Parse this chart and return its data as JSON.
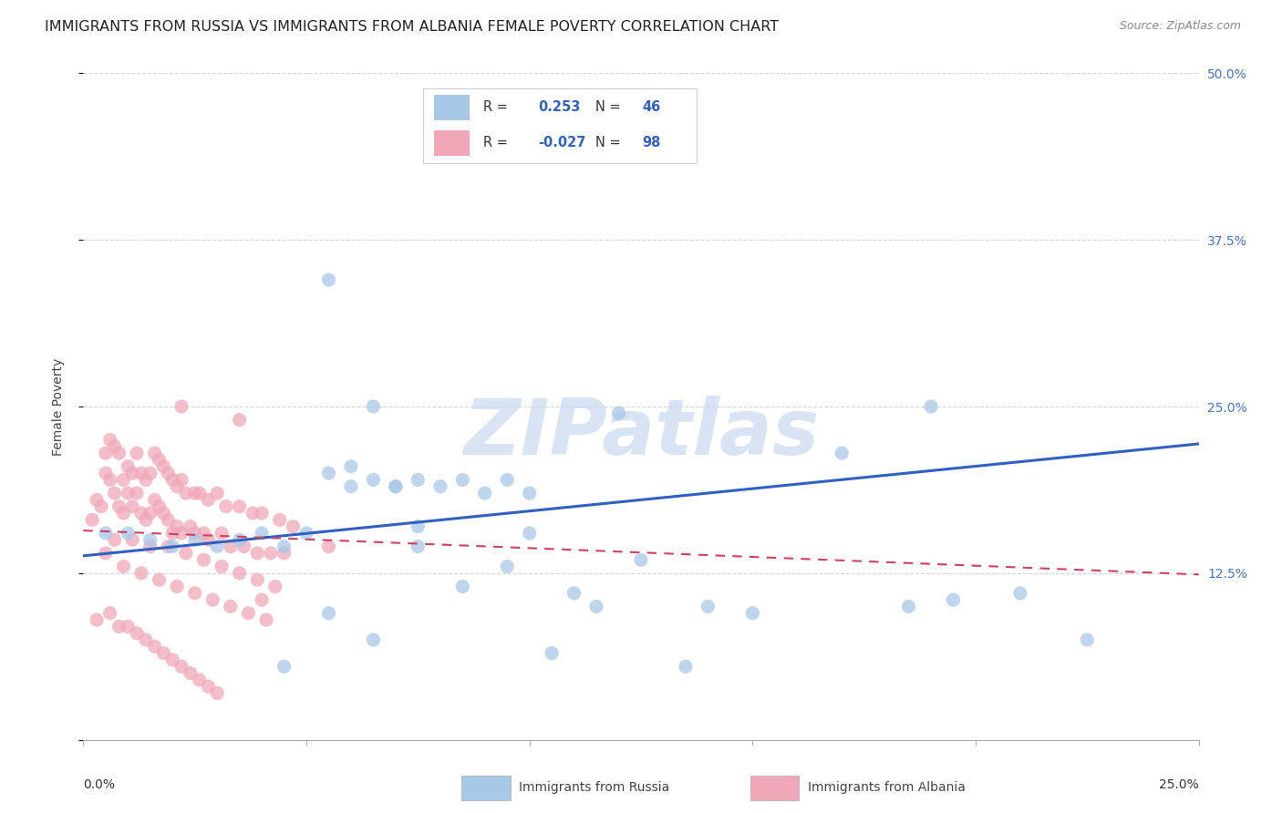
{
  "title": "IMMIGRANTS FROM RUSSIA VS IMMIGRANTS FROM ALBANIA FEMALE POVERTY CORRELATION CHART",
  "source": "Source: ZipAtlas.com",
  "ylabel": "Female Poverty",
  "yticks": [
    0.0,
    0.125,
    0.25,
    0.375,
    0.5
  ],
  "ytick_labels": [
    "",
    "12.5%",
    "25.0%",
    "37.5%",
    "50.0%"
  ],
  "xlim": [
    0.0,
    0.25
  ],
  "ylim": [
    0.0,
    0.5
  ],
  "russia_color": "#a8c8e8",
  "albania_color": "#f0a8b8",
  "russia_line_color": "#3060c0",
  "albania_line_color": "#d04060",
  "russia_R": 0.253,
  "russia_N": 46,
  "albania_R": -0.027,
  "albania_N": 98,
  "russia_scatter_x": [
    0.005,
    0.01,
    0.015,
    0.02,
    0.025,
    0.03,
    0.035,
    0.04,
    0.045,
    0.05,
    0.055,
    0.06,
    0.065,
    0.07,
    0.075,
    0.08,
    0.085,
    0.09,
    0.095,
    0.1,
    0.055,
    0.065,
    0.06,
    0.07,
    0.075,
    0.12,
    0.17,
    0.1,
    0.11,
    0.115,
    0.21,
    0.195,
    0.14,
    0.085,
    0.055,
    0.065,
    0.105,
    0.125,
    0.15,
    0.045,
    0.075,
    0.095,
    0.225,
    0.135,
    0.185,
    0.19
  ],
  "russia_scatter_y": [
    0.155,
    0.155,
    0.15,
    0.145,
    0.15,
    0.145,
    0.15,
    0.155,
    0.145,
    0.155,
    0.2,
    0.205,
    0.195,
    0.19,
    0.195,
    0.19,
    0.195,
    0.185,
    0.195,
    0.185,
    0.345,
    0.25,
    0.19,
    0.19,
    0.16,
    0.245,
    0.215,
    0.155,
    0.11,
    0.1,
    0.11,
    0.105,
    0.1,
    0.115,
    0.095,
    0.075,
    0.065,
    0.135,
    0.095,
    0.055,
    0.145,
    0.13,
    0.075,
    0.055,
    0.1,
    0.25
  ],
  "albania_scatter_x": [
    0.002,
    0.003,
    0.004,
    0.005,
    0.005,
    0.006,
    0.006,
    0.007,
    0.007,
    0.008,
    0.008,
    0.009,
    0.009,
    0.01,
    0.01,
    0.011,
    0.011,
    0.012,
    0.012,
    0.013,
    0.013,
    0.014,
    0.014,
    0.015,
    0.015,
    0.016,
    0.016,
    0.017,
    0.017,
    0.018,
    0.018,
    0.019,
    0.019,
    0.02,
    0.02,
    0.021,
    0.021,
    0.022,
    0.022,
    0.023,
    0.024,
    0.025,
    0.025,
    0.026,
    0.027,
    0.028,
    0.028,
    0.03,
    0.031,
    0.032,
    0.033,
    0.035,
    0.036,
    0.038,
    0.039,
    0.04,
    0.042,
    0.044,
    0.045,
    0.047,
    0.005,
    0.007,
    0.009,
    0.011,
    0.013,
    0.015,
    0.017,
    0.019,
    0.021,
    0.023,
    0.025,
    0.027,
    0.029,
    0.031,
    0.033,
    0.035,
    0.037,
    0.039,
    0.041,
    0.043,
    0.003,
    0.006,
    0.008,
    0.01,
    0.012,
    0.014,
    0.016,
    0.018,
    0.02,
    0.022,
    0.024,
    0.026,
    0.028,
    0.03,
    0.055,
    0.04,
    0.035,
    0.022
  ],
  "albania_scatter_y": [
    0.165,
    0.18,
    0.175,
    0.215,
    0.2,
    0.225,
    0.195,
    0.22,
    0.185,
    0.215,
    0.175,
    0.195,
    0.17,
    0.205,
    0.185,
    0.2,
    0.175,
    0.215,
    0.185,
    0.2,
    0.17,
    0.195,
    0.165,
    0.2,
    0.17,
    0.215,
    0.18,
    0.21,
    0.175,
    0.205,
    0.17,
    0.2,
    0.165,
    0.195,
    0.155,
    0.19,
    0.16,
    0.195,
    0.155,
    0.185,
    0.16,
    0.185,
    0.155,
    0.185,
    0.155,
    0.18,
    0.15,
    0.185,
    0.155,
    0.175,
    0.145,
    0.175,
    0.145,
    0.17,
    0.14,
    0.17,
    0.14,
    0.165,
    0.14,
    0.16,
    0.14,
    0.15,
    0.13,
    0.15,
    0.125,
    0.145,
    0.12,
    0.145,
    0.115,
    0.14,
    0.11,
    0.135,
    0.105,
    0.13,
    0.1,
    0.125,
    0.095,
    0.12,
    0.09,
    0.115,
    0.09,
    0.095,
    0.085,
    0.085,
    0.08,
    0.075,
    0.07,
    0.065,
    0.06,
    0.055,
    0.05,
    0.045,
    0.04,
    0.035,
    0.145,
    0.105,
    0.24,
    0.25
  ],
  "russia_line_x0": 0.0,
  "russia_line_y0": 0.138,
  "russia_line_x1": 0.25,
  "russia_line_y1": 0.222,
  "albania_line_x0": 0.0,
  "albania_line_y0": 0.157,
  "albania_line_x1": 0.25,
  "albania_line_y1": 0.124,
  "watermark_text": "ZIPatlas",
  "watermark_color": "#c8d8ee",
  "grid_color": "#c8c8d8",
  "background_color": "#ffffff",
  "right_axis_color": "#4472c4",
  "title_fontsize": 11.5,
  "axis_label_fontsize": 10,
  "tick_fontsize": 10,
  "legend_R_color": "#3060c0",
  "legend_N_color": "#3060c0"
}
